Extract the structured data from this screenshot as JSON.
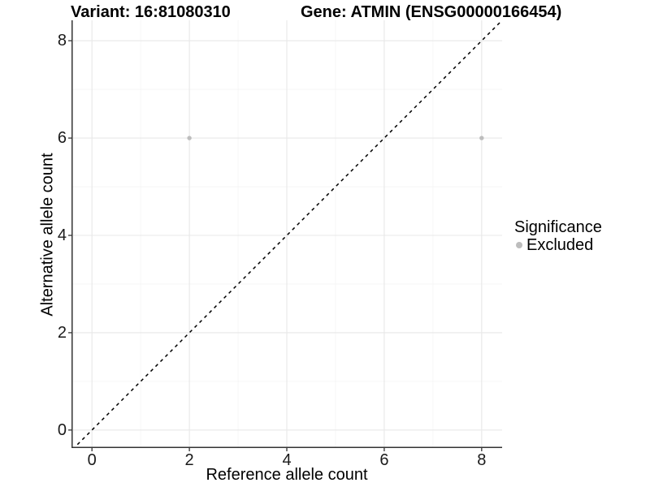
{
  "chart_data": {
    "type": "scatter",
    "title_left": "Variant: 16:81080310",
    "title_right": "Gene: ATMIN (ENSG00000166454)",
    "xlabel": "Reference allele count",
    "ylabel": "Alternative allele count",
    "xlim": [
      -0.42,
      8.42
    ],
    "ylim": [
      -0.37,
      8.42
    ],
    "xticks": [
      0,
      2,
      4,
      6,
      8
    ],
    "yticks": [
      0,
      2,
      4,
      6,
      8
    ],
    "xticks_minor": [
      1,
      3,
      5,
      7
    ],
    "yticks_minor": [
      1,
      3,
      5,
      7
    ],
    "grid": "major+minor",
    "identity_line": {
      "equation": "y = x",
      "style": "dashed",
      "color": "#000000"
    },
    "series": [
      {
        "name": "Excluded",
        "color": "#bdbdbd",
        "points": [
          [
            2,
            6
          ],
          [
            8,
            6
          ]
        ]
      }
    ],
    "legend": {
      "title": "Significance",
      "position": "right",
      "items": [
        {
          "label": "Excluded",
          "color": "#bdbdbd"
        }
      ]
    }
  },
  "colors": {
    "background": "#ffffff",
    "grid_major": "#e8e8e8",
    "grid_minor": "#f4f4f4",
    "axis_line": "#333333",
    "tick_mark": "#333333",
    "text": "#000000",
    "point": "#bdbdbd"
  }
}
